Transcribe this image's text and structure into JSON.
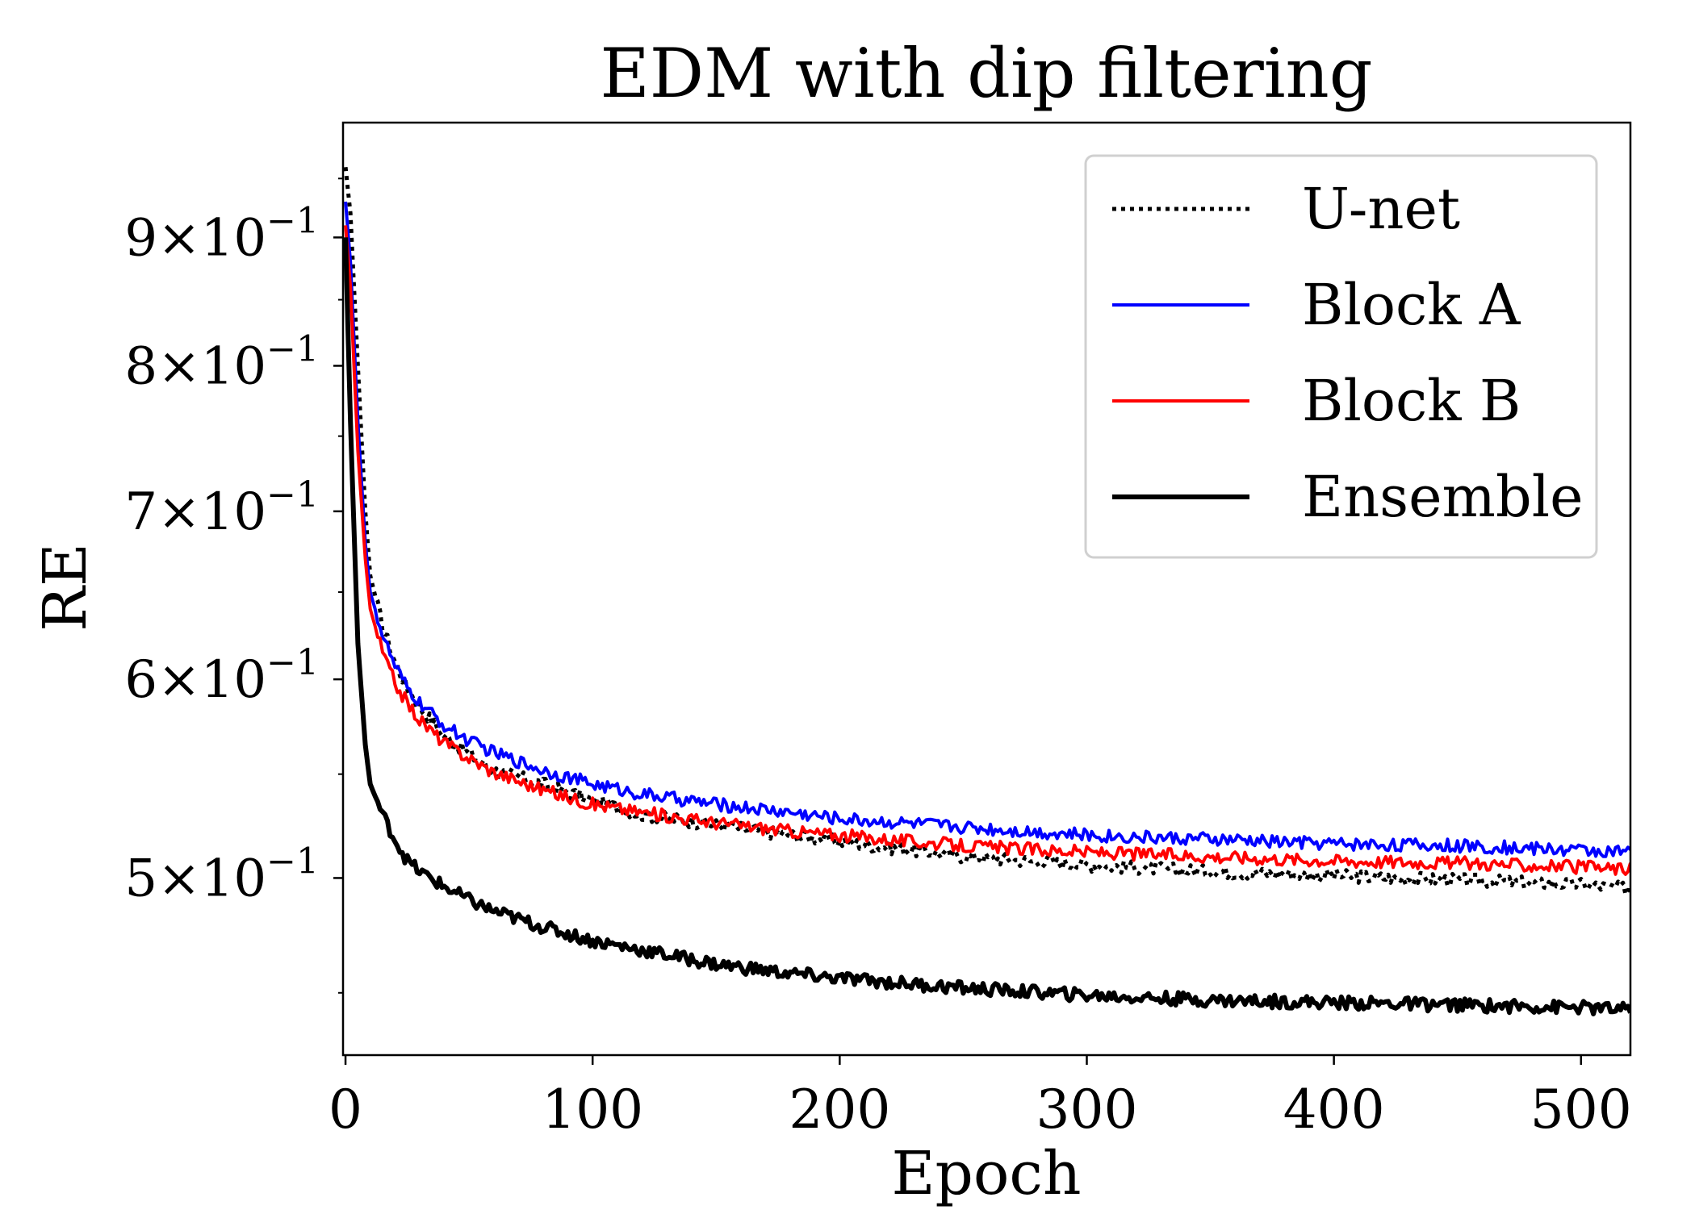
{
  "chart_data": {
    "type": "line",
    "title": "EDM with dip filtering",
    "xlabel": "Epoch",
    "ylabel": "RE",
    "yscale": "log",
    "xlim": [
      -1,
      520
    ],
    "ylim": [
      0.425,
      1.0
    ],
    "grid": false,
    "legend_position": "top-right",
    "x_ticks": [
      0,
      100,
      200,
      300,
      400,
      500
    ],
    "x_tick_labels": [
      "0",
      "100",
      "200",
      "300",
      "400",
      "500"
    ],
    "y_ticks": [
      {
        "value": 0.5,
        "mantissa": "5",
        "exponent": "−1"
      },
      {
        "value": 0.6,
        "mantissa": "6",
        "exponent": "−1"
      },
      {
        "value": 0.7,
        "mantissa": "7",
        "exponent": "−1"
      },
      {
        "value": 0.8,
        "mantissa": "8",
        "exponent": "−1"
      },
      {
        "value": 0.9,
        "mantissa": "9",
        "exponent": "−1"
      }
    ],
    "y_tick_prefix": "×10",
    "series": [
      {
        "name": "U-net",
        "color": "#000000",
        "style": "dotted",
        "width": 5,
        "x": [
          0,
          2,
          5,
          8,
          10,
          15,
          20,
          25,
          30,
          40,
          50,
          60,
          80,
          100,
          120,
          150,
          180,
          200,
          250,
          300,
          350,
          400,
          450,
          500,
          519
        ],
        "y": [
          0.96,
          0.92,
          0.8,
          0.7,
          0.66,
          0.63,
          0.61,
          0.595,
          0.585,
          0.57,
          0.56,
          0.552,
          0.545,
          0.537,
          0.53,
          0.525,
          0.52,
          0.517,
          0.51,
          0.506,
          0.503,
          0.501,
          0.499,
          0.497,
          0.495
        ]
      },
      {
        "name": "Block A",
        "color": "#0000ff",
        "style": "solid",
        "width": 4,
        "x": [
          0,
          2,
          5,
          8,
          10,
          15,
          20,
          25,
          30,
          40,
          50,
          60,
          80,
          100,
          120,
          150,
          180,
          200,
          250,
          300,
          350,
          400,
          450,
          500,
          519
        ],
        "y": [
          0.93,
          0.88,
          0.76,
          0.68,
          0.65,
          0.625,
          0.607,
          0.595,
          0.587,
          0.575,
          0.567,
          0.561,
          0.552,
          0.545,
          0.54,
          0.535,
          0.531,
          0.528,
          0.524,
          0.52,
          0.518,
          0.516,
          0.515,
          0.513,
          0.512
        ]
      },
      {
        "name": "Block B",
        "color": "#ff0000",
        "style": "solid",
        "width": 4,
        "x": [
          0,
          2,
          5,
          8,
          10,
          15,
          20,
          25,
          30,
          40,
          50,
          60,
          80,
          100,
          120,
          150,
          180,
          200,
          250,
          300,
          350,
          400,
          450,
          500,
          519
        ],
        "y": [
          0.91,
          0.86,
          0.74,
          0.67,
          0.64,
          0.615,
          0.598,
          0.587,
          0.578,
          0.566,
          0.558,
          0.551,
          0.542,
          0.535,
          0.531,
          0.526,
          0.522,
          0.52,
          0.515,
          0.512,
          0.51,
          0.508,
          0.507,
          0.505,
          0.504
        ]
      },
      {
        "name": "Ensemble",
        "color": "#000000",
        "style": "solid",
        "width": 6,
        "x": [
          0,
          2,
          5,
          8,
          10,
          15,
          20,
          25,
          30,
          40,
          50,
          60,
          80,
          100,
          120,
          150,
          180,
          200,
          250,
          300,
          350,
          400,
          450,
          500,
          519
        ],
        "y": [
          0.9,
          0.76,
          0.62,
          0.565,
          0.545,
          0.53,
          0.518,
          0.508,
          0.503,
          0.496,
          0.49,
          0.485,
          0.478,
          0.472,
          0.468,
          0.462,
          0.458,
          0.456,
          0.452,
          0.449,
          0.447,
          0.446,
          0.445,
          0.444,
          0.443
        ]
      }
    ]
  }
}
